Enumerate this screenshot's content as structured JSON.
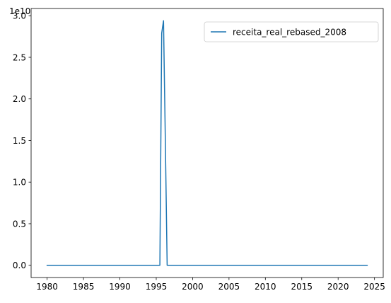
{
  "chart_data": {
    "type": "line",
    "title": "",
    "xlabel": "",
    "ylabel": "",
    "y_offset_label": "1e10",
    "xlim": [
      1977.8,
      2026.2
    ],
    "ylim": [
      -0.147,
      3.087
    ],
    "x_ticks": [
      1980,
      1985,
      1990,
      1995,
      2000,
      2005,
      2010,
      2015,
      2020,
      2025
    ],
    "x_tick_labels": [
      "1980",
      "1985",
      "1990",
      "1995",
      "2000",
      "2005",
      "2010",
      "2015",
      "2020",
      "2025"
    ],
    "y_ticks": [
      0.0,
      0.5,
      1.0,
      1.5,
      2.0,
      2.5,
      3.0
    ],
    "y_tick_labels": [
      "0.0",
      "0.5",
      "1.0",
      "1.5",
      "2.0",
      "2.5",
      "3.0"
    ],
    "grid": false,
    "legend_position": "top-right",
    "series": [
      {
        "name": "receita_real_rebased_2008",
        "color": "#1f77b4",
        "x": [
          1980.0,
          1995.5,
          1995.75,
          1996.0,
          1996.25,
          1996.5,
          1996.75,
          2024.0
        ],
        "y": [
          0.0,
          0.0,
          2.79,
          2.94,
          1.5,
          0.0,
          0.0,
          0.0
        ]
      }
    ]
  }
}
